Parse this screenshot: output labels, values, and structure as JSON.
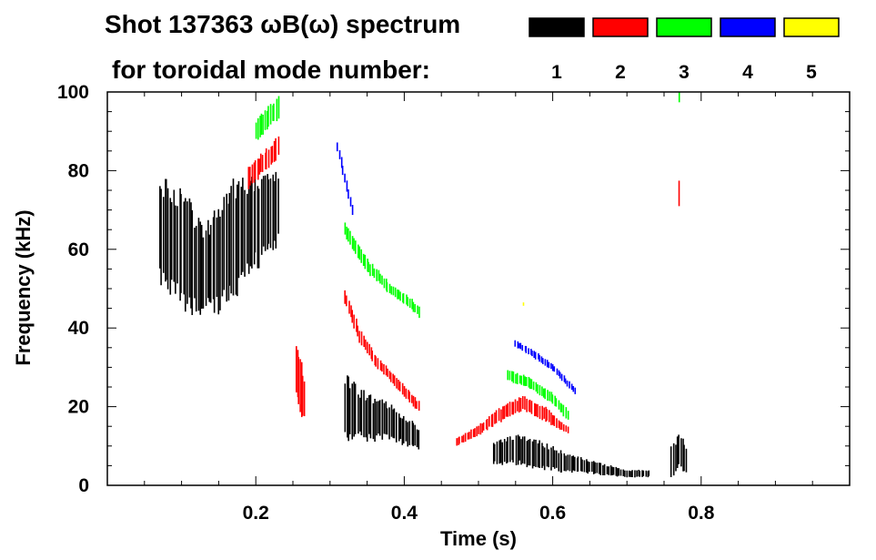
{
  "chart_data": {
    "type": "scatter",
    "title_line1": "Shot 137363 ωB(ω) spectrum",
    "title_line2": "for toroidal mode number:",
    "xlabel": "Time (s)",
    "ylabel": "Frequency (kHz)",
    "xlim": [
      0.0,
      1.0
    ],
    "ylim": [
      0,
      100
    ],
    "x_ticks": [
      0.2,
      0.4,
      0.6,
      0.8
    ],
    "x_tick_labels": [
      "0.2",
      "0.4",
      "0.6",
      "0.8"
    ],
    "y_ticks": [
      0,
      20,
      40,
      60,
      80,
      100
    ],
    "y_tick_labels": [
      "0",
      "20",
      "40",
      "60",
      "80",
      "100"
    ],
    "legend": [
      {
        "mode": "1",
        "color": "#000000"
      },
      {
        "mode": "2",
        "color": "#ff0000"
      },
      {
        "mode": "3",
        "color": "#00ff00"
      },
      {
        "mode": "4",
        "color": "#0000ff"
      },
      {
        "mode": "5",
        "color": "#ffff00"
      }
    ],
    "series": [
      {
        "name": "n=1",
        "color": "#000000",
        "bands": [
          {
            "t": [
              0.07,
              0.09,
              0.11,
              0.13,
              0.15,
              0.17,
              0.19,
              0.21,
              0.23
            ],
            "f": [
              64,
              62,
              58,
              55,
              57,
              62,
              66,
              68,
              70
            ],
            "spread": [
              14,
              16,
              15,
              12,
              14,
              16,
              14,
              12,
              10
            ]
          },
          {
            "t": [
              0.32,
              0.34,
              0.36,
              0.38,
              0.4,
              0.42
            ],
            "f": [
              20,
              18,
              17,
              16,
              14,
              12
            ],
            "spread": [
              9,
              7,
              6,
              5,
              4,
              3
            ]
          },
          {
            "t": [
              0.52,
              0.55,
              0.58,
              0.61,
              0.64,
              0.67,
              0.7,
              0.73
            ],
            "f": [
              8,
              9,
              8,
              6,
              5,
              4,
              3,
              3
            ],
            "spread": [
              3,
              4,
              4,
              3,
              2,
              1.5,
              1,
              1
            ]
          },
          {
            "t": [
              0.76,
              0.77,
              0.78
            ],
            "f": [
              6,
              9,
              6
            ],
            "spread": [
              4,
              5,
              4
            ]
          }
        ]
      },
      {
        "name": "n=2",
        "color": "#ff0000",
        "bands": [
          {
            "t": [
              0.19,
              0.21,
              0.23
            ],
            "f": [
              78,
              82,
              86
            ],
            "spread": [
              3,
              3,
              3
            ]
          },
          {
            "t": [
              0.255,
              0.26,
              0.265
            ],
            "f": [
              30,
              26,
              22
            ],
            "spread": [
              7,
              8,
              6
            ]
          },
          {
            "t": [
              0.32,
              0.34,
              0.36,
              0.38,
              0.4,
              0.42
            ],
            "f": [
              48,
              38,
              32,
              28,
              24,
              20
            ],
            "spread": [
              2,
              2,
              1.5,
              1.5,
              1.5,
              1.5
            ]
          },
          {
            "t": [
              0.47,
              0.5,
              0.53,
              0.56,
              0.59,
              0.62
            ],
            "f": [
              11,
              14,
              18,
              21,
              18,
              14
            ],
            "spread": [
              1,
              1.5,
              2,
              2,
              2,
              1
            ]
          },
          {
            "t": [
              0.77
            ],
            "f": [
              74
            ],
            "spread": [
              4
            ]
          }
        ]
      },
      {
        "name": "n=3",
        "color": "#00ff00",
        "bands": [
          {
            "t": [
              0.2,
              0.215,
              0.23
            ],
            "f": [
              90,
              93,
              96
            ],
            "spread": [
              3,
              3,
              3
            ]
          },
          {
            "t": [
              0.32,
              0.35,
              0.38,
              0.41,
              0.42
            ],
            "f": [
              65,
              56,
              50,
              46,
              44
            ],
            "spread": [
              2,
              2,
              1.5,
              1.5,
              1.5
            ]
          },
          {
            "t": [
              0.54,
              0.57,
              0.6,
              0.62
            ],
            "f": [
              28,
              26,
              22,
              18
            ],
            "spread": [
              1.5,
              1.5,
              1.5,
              1.5
            ]
          },
          {
            "t": [
              0.77
            ],
            "f": [
              99
            ],
            "spread": [
              2
            ]
          }
        ]
      },
      {
        "name": "n=4",
        "color": "#0000ff",
        "bands": [
          {
            "t": [
              0.31,
              0.32,
              0.33
            ],
            "f": [
              86,
              78,
              70
            ],
            "spread": [
              1.5,
              1.5,
              1.5
            ]
          },
          {
            "t": [
              0.55,
              0.57,
              0.6,
              0.63
            ],
            "f": [
              36,
              34,
              30,
              24
            ],
            "spread": [
              1,
              1,
              1,
              1
            ]
          }
        ]
      },
      {
        "name": "n=5",
        "color": "#ffff00",
        "bands": [
          {
            "t": [
              0.56
            ],
            "f": [
              46
            ],
            "spread": [
              0.5
            ]
          }
        ]
      }
    ]
  }
}
